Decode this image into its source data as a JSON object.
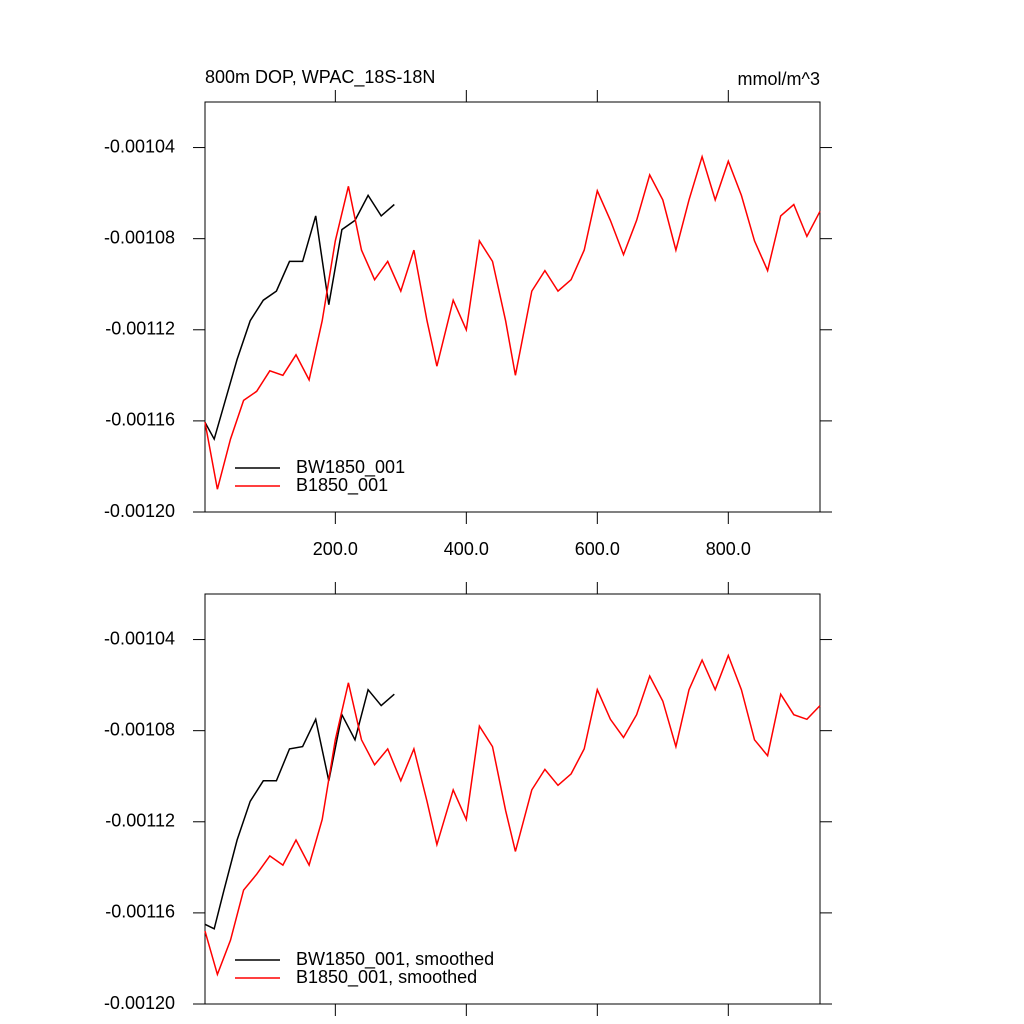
{
  "chart_data": [
    {
      "type": "line",
      "title": "800m DOP, WPAC_18S-18N",
      "units": "mmol/m^3",
      "xlim": [
        1,
        940
      ],
      "ylim": [
        -0.0012,
        -0.00102
      ],
      "xticks": [
        {
          "value": 200,
          "label": "200.0"
        },
        {
          "value": 400,
          "label": "400.0"
        },
        {
          "value": 600,
          "label": "600.0"
        },
        {
          "value": 800,
          "label": "800.0"
        }
      ],
      "yticks": [
        {
          "value": -0.0012,
          "label": "-0.00120"
        },
        -0.00116,
        -0.00112,
        -0.00108,
        -0.00104
      ],
      "legend": "lower left",
      "series": [
        {
          "name": "BW1850_001",
          "color": "#000000",
          "x": [
            1,
            15,
            30,
            50,
            70,
            90,
            110,
            130,
            150,
            170,
            190,
            210,
            230,
            250,
            270,
            290
          ],
          "values": [
            -0.0011606,
            -0.001168,
            -0.001153,
            -0.001133,
            -0.001116,
            -0.001107,
            -0.001103,
            -0.00109,
            -0.00109,
            -0.00107,
            -0.001109,
            -0.001076,
            -0.001072,
            -0.001061,
            -0.00107,
            -0.001065
          ]
        },
        {
          "name": "B1850_001",
          "color": "#ff0000",
          "x": [
            1,
            20,
            40,
            60,
            80,
            100,
            120,
            140,
            160,
            180,
            200,
            220,
            240,
            260,
            280,
            300,
            320,
            340,
            355,
            380,
            400,
            420,
            440,
            460,
            475,
            500,
            520,
            540,
            560,
            580,
            600,
            620,
            640,
            660,
            680,
            700,
            720,
            740,
            760,
            780,
            800,
            820,
            840,
            860,
            880,
            900,
            920,
            940
          ],
          "values": [
            -0.0011606,
            -0.00119,
            -0.001168,
            -0.001151,
            -0.001147,
            -0.001138,
            -0.00114,
            -0.001131,
            -0.001142,
            -0.001116,
            -0.001081,
            -0.001057,
            -0.001085,
            -0.001098,
            -0.00109,
            -0.001103,
            -0.001085,
            -0.001116,
            -0.001136,
            -0.001107,
            -0.00112,
            -0.001081,
            -0.00109,
            -0.001116,
            -0.00114,
            -0.001103,
            -0.001094,
            -0.001103,
            -0.001098,
            -0.001085,
            -0.001059,
            -0.001072,
            -0.001087,
            -0.001072,
            -0.001052,
            -0.001063,
            -0.001085,
            -0.001063,
            -0.001044,
            -0.001063,
            -0.001046,
            -0.001061,
            -0.001081,
            -0.001094,
            -0.00107,
            -0.001065,
            -0.001079,
            -0.001068
          ]
        }
      ]
    },
    {
      "type": "line",
      "xlim": [
        1,
        940
      ],
      "ylim": [
        -0.0012,
        -0.00102
      ],
      "xticks": [
        200,
        400,
        600,
        800
      ],
      "yticks": [
        {
          "value": -0.0012,
          "label": "-0.00120"
        },
        -0.00116,
        -0.00112,
        -0.00108,
        -0.00104
      ],
      "legend": "lower left",
      "series": [
        {
          "name": "BW1850_001, smoothed",
          "color": "#000000",
          "x": [
            1,
            15,
            30,
            50,
            70,
            90,
            110,
            130,
            150,
            170,
            190,
            210,
            230,
            250,
            270,
            290
          ],
          "values": [
            -0.001165,
            -0.001167,
            -0.00115,
            -0.001128,
            -0.001111,
            -0.001102,
            -0.001102,
            -0.001088,
            -0.001087,
            -0.001075,
            -0.001102,
            -0.001073,
            -0.001084,
            -0.001062,
            -0.001069,
            -0.001064
          ]
        },
        {
          "name": "B1850_001, smoothed",
          "color": "#ff0000",
          "x": [
            1,
            20,
            40,
            60,
            80,
            100,
            120,
            140,
            160,
            180,
            200,
            220,
            240,
            260,
            280,
            300,
            320,
            340,
            355,
            380,
            400,
            420,
            440,
            460,
            475,
            500,
            520,
            540,
            560,
            580,
            600,
            620,
            640,
            660,
            680,
            700,
            720,
            740,
            760,
            780,
            800,
            820,
            840,
            860,
            880,
            900,
            920,
            940
          ],
          "values": [
            -0.001168,
            -0.001187,
            -0.001172,
            -0.00115,
            -0.001143,
            -0.001135,
            -0.001139,
            -0.001128,
            -0.001139,
            -0.001119,
            -0.001084,
            -0.001059,
            -0.001084,
            -0.001095,
            -0.001088,
            -0.001102,
            -0.001088,
            -0.001111,
            -0.00113,
            -0.001106,
            -0.001119,
            -0.001078,
            -0.001087,
            -0.001115,
            -0.001133,
            -0.001106,
            -0.001097,
            -0.001104,
            -0.001099,
            -0.001088,
            -0.001062,
            -0.001075,
            -0.001083,
            -0.001073,
            -0.001056,
            -0.001067,
            -0.001087,
            -0.001062,
            -0.001049,
            -0.001062,
            -0.001047,
            -0.001062,
            -0.001084,
            -0.001091,
            -0.001064,
            -0.001073,
            -0.001075,
            -0.001069
          ]
        }
      ]
    }
  ]
}
